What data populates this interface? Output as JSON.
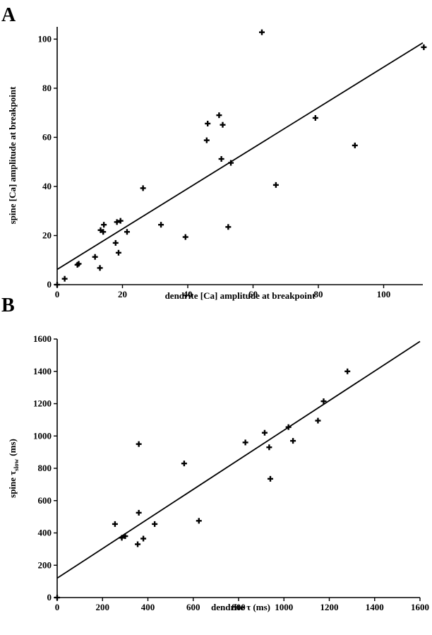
{
  "chart_data": [
    {
      "type": "scatter",
      "panel_label": "A",
      "xlabel": "dendrite [Ca] amplitude at breakpoint",
      "ylabel": "spine [Ca] amplitude at breakpoint",
      "xlim": [
        0,
        112
      ],
      "ylim": [
        0,
        105
      ],
      "xticks": [
        0,
        20,
        40,
        60,
        80,
        100
      ],
      "yticks": [
        0,
        20,
        40,
        60,
        80,
        100
      ],
      "grid": false,
      "points": [
        [
          0,
          0
        ],
        [
          2.3,
          2.4
        ],
        [
          6.2,
          8.1
        ],
        [
          6.6,
          8.5
        ],
        [
          11.6,
          11.3
        ],
        [
          13.1,
          6.8
        ],
        [
          13.3,
          22.2
        ],
        [
          14.1,
          21.5
        ],
        [
          14.3,
          24.4
        ],
        [
          17.9,
          17.0
        ],
        [
          18.3,
          25.5
        ],
        [
          18.8,
          13.0
        ],
        [
          19.4,
          26.0
        ],
        [
          21.4,
          21.5
        ],
        [
          26.3,
          39.3
        ],
        [
          31.8,
          24.4
        ],
        [
          39.3,
          19.4
        ],
        [
          45.8,
          58.8
        ],
        [
          46.1,
          65.6
        ],
        [
          49.6,
          69.0
        ],
        [
          50.3,
          51.2
        ],
        [
          50.7,
          65.1
        ],
        [
          52.4,
          23.5
        ],
        [
          53.2,
          49.6
        ],
        [
          62.7,
          102.8
        ],
        [
          67.0,
          40.6
        ],
        [
          79.1,
          67.9
        ],
        [
          91.2,
          56.7
        ],
        [
          112.3,
          96.7
        ]
      ],
      "fit": {
        "x": [
          0,
          112
        ],
        "y": [
          6.2,
          98.5
        ]
      }
    },
    {
      "type": "scatter",
      "panel_label": "B",
      "xlabel": "dendrite τ (ms)",
      "ylabel_main": "spine τ",
      "ylabel_sub": "slow",
      "ylabel_unit": "(ms)",
      "xlim": [
        0,
        1600
      ],
      "ylim": [
        0,
        1600
      ],
      "xticks": [
        0,
        200,
        400,
        600,
        800,
        1000,
        1200,
        1400,
        1600
      ],
      "yticks": [
        0,
        200,
        400,
        600,
        800,
        1000,
        1200,
        1400,
        1600
      ],
      "grid": false,
      "points": [
        [
          0,
          0
        ],
        [
          255,
          455
        ],
        [
          285,
          370
        ],
        [
          300,
          380
        ],
        [
          355,
          330
        ],
        [
          360,
          525
        ],
        [
          360,
          950
        ],
        [
          380,
          365
        ],
        [
          430,
          455
        ],
        [
          560,
          830
        ],
        [
          625,
          475
        ],
        [
          830,
          960
        ],
        [
          915,
          1020
        ],
        [
          935,
          930
        ],
        [
          940,
          735
        ],
        [
          1020,
          1055
        ],
        [
          1040,
          970
        ],
        [
          1150,
          1095
        ],
        [
          1175,
          1215
        ],
        [
          1280,
          1400
        ]
      ],
      "fit": {
        "x": [
          0,
          1600
        ],
        "y": [
          120,
          1585
        ]
      }
    }
  ]
}
